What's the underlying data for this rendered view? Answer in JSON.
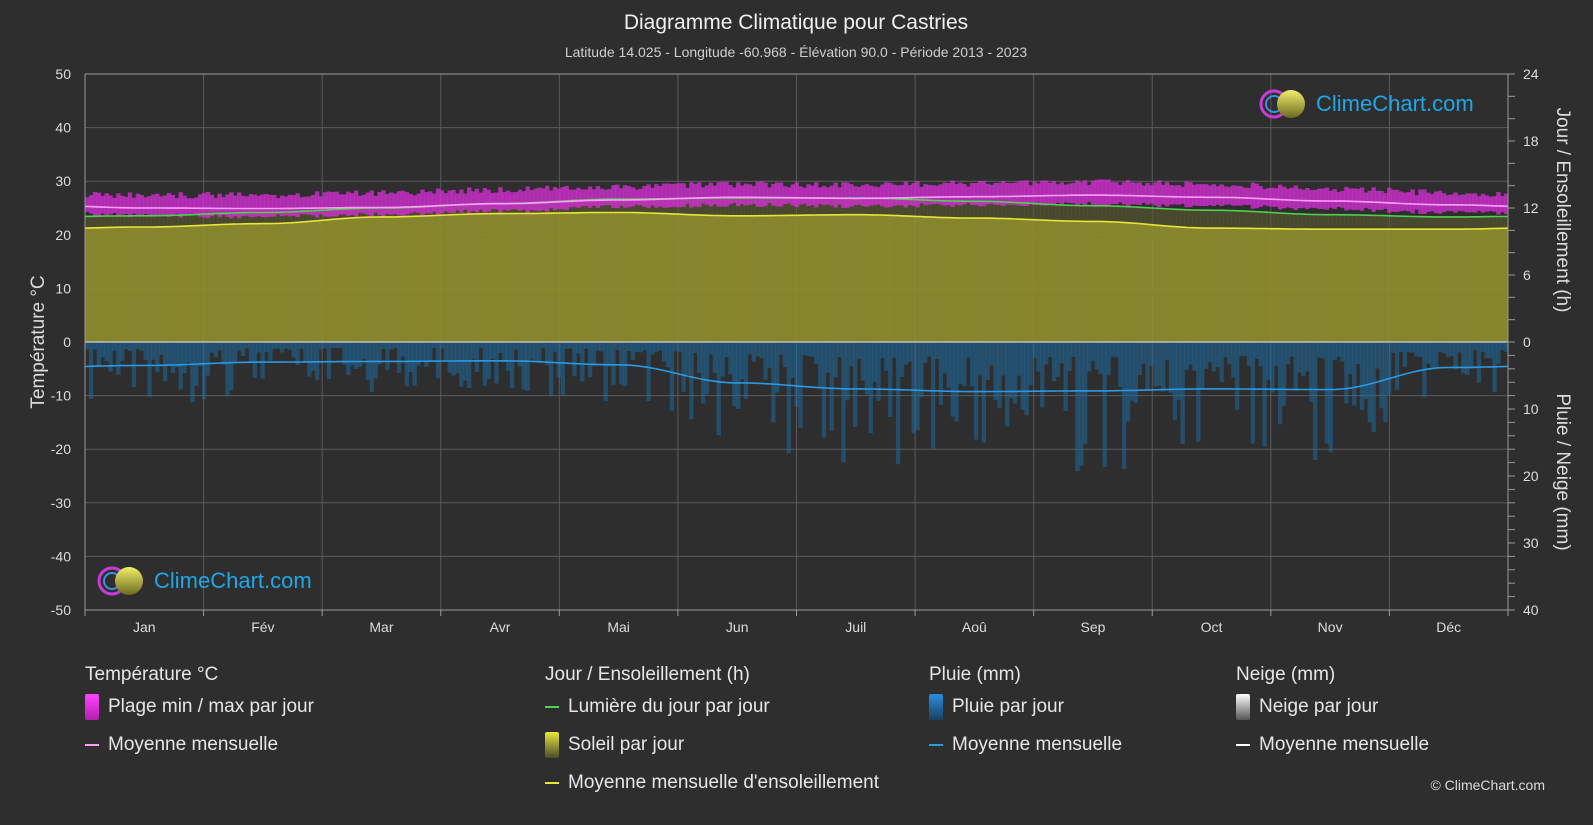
{
  "title": "Diagramme Climatique pour Castries",
  "subtitle": "Latitude 14.025 - Longitude -60.968 - Élévation 90.0 - Période 2013 - 2023",
  "brand": "ClimeChart.com",
  "copyright": "© ClimeChart.com",
  "chart_data": {
    "type": "area",
    "months": [
      "Jan",
      "Fév",
      "Mar",
      "Avr",
      "Mai",
      "Jun",
      "Juil",
      "Aoû",
      "Sep",
      "Oct",
      "Nov",
      "Déc"
    ],
    "axes": {
      "left": {
        "label": "Température °C",
        "range": [
          -50,
          50
        ],
        "ticks": [
          50,
          40,
          30,
          20,
          10,
          0,
          -10,
          -20,
          -30,
          -40,
          -50
        ]
      },
      "right_top": {
        "label": "Jour / Ensoleillement (h)",
        "range": [
          0,
          24
        ],
        "ticks": [
          24,
          18,
          12,
          6,
          0
        ]
      },
      "right_bottom": {
        "label": "Pluie / Neige (mm)",
        "range": [
          0,
          40
        ],
        "ticks": [
          0,
          10,
          20,
          30,
          40
        ],
        "inverted": true
      }
    },
    "series": [
      {
        "name": "Moyenne mensuelle",
        "group": "temperature",
        "unit": "°C",
        "values": [
          25.0,
          24.9,
          25.1,
          25.8,
          26.5,
          27.0,
          26.8,
          27.1,
          27.4,
          27.0,
          26.3,
          25.6
        ]
      },
      {
        "name": "Plage min / max par jour",
        "group": "temperature",
        "unit": "°C",
        "min": [
          24.0,
          23.8,
          24.2,
          24.8,
          25.6,
          26.0,
          25.8,
          26.0,
          26.2,
          25.8,
          25.2,
          24.6
        ],
        "max": [
          26.8,
          26.8,
          27.2,
          27.8,
          28.4,
          28.8,
          28.6,
          29.0,
          29.2,
          28.8,
          28.0,
          27.2
        ]
      },
      {
        "name": "Lumière du jour par jour",
        "group": "sunshine",
        "unit": "h",
        "values": [
          11.3,
          11.6,
          12.0,
          12.4,
          12.8,
          12.9,
          12.9,
          12.6,
          12.2,
          11.8,
          11.4,
          11.2
        ]
      },
      {
        "name": "Moyenne mensuelle d'ensoleillement",
        "group": "sunshine",
        "unit": "h",
        "values": [
          10.3,
          10.6,
          11.2,
          11.5,
          11.6,
          11.3,
          11.4,
          11.1,
          10.8,
          10.2,
          10.1,
          10.1
        ]
      },
      {
        "name": "Moyenne mensuelle",
        "group": "rain",
        "unit": "mm",
        "values": [
          3.5,
          3.0,
          2.9,
          2.8,
          3.4,
          6.1,
          7.0,
          7.4,
          7.3,
          7.0,
          7.1,
          3.8
        ]
      }
    ]
  },
  "legend": {
    "temperature": {
      "heading": "Température °C",
      "items": [
        "Plage min / max par jour",
        "Moyenne mensuelle"
      ]
    },
    "sunshine": {
      "heading": "Jour / Ensoleillement (h)",
      "items": [
        "Lumière du jour par jour",
        "Soleil par jour",
        "Moyenne mensuelle d'ensoleillement"
      ]
    },
    "rain": {
      "heading": "Pluie (mm)",
      "items": [
        "Pluie par jour",
        "Moyenne mensuelle"
      ]
    },
    "snow": {
      "heading": "Neige (mm)",
      "items": [
        "Neige par jour",
        "Moyenne mensuelle"
      ]
    }
  },
  "colors": {
    "background": "#2e2e2e",
    "grid": "#5a5a5a",
    "temp_range": "#d82fd8",
    "temp_mean": "#ff9cff",
    "daylight": "#4ed14e",
    "sunshine_fill": "#8e8c2c",
    "sunshine_mean": "#e6e63a",
    "rain_fill": "#1f6a9e",
    "rain_mean": "#2a9ae6",
    "snow_mean": "#ffffff",
    "brand": "#1fa7e8"
  }
}
